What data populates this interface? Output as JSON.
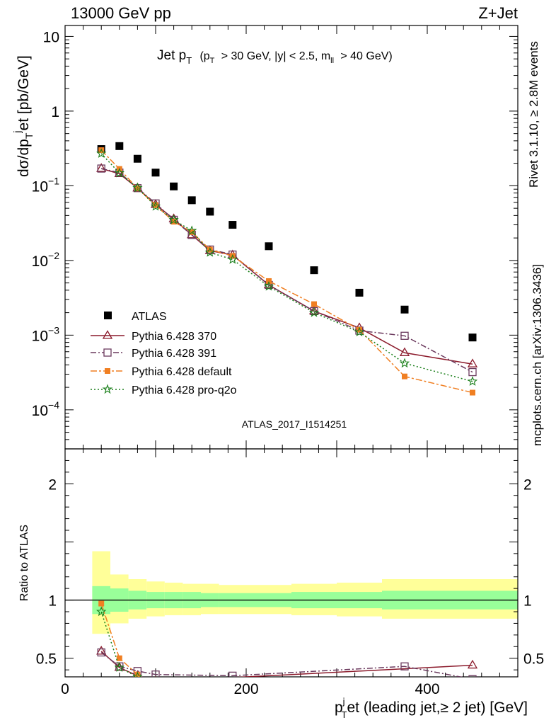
{
  "header": {
    "left": "13000 GeV pp",
    "right": "Z+Jet"
  },
  "side": {
    "rivet": "Rivet 3.1.10, ≥ 2.8M events",
    "mcplots": "mcplots.cern.ch [arXiv:1306.3436]"
  },
  "watermark": "ATLAS_2017_I1514251",
  "colors": {
    "atlas": "#000000",
    "p370": "#8b1a2b",
    "p391": "#6b3a5e",
    "pdefault": "#f07f22",
    "pq2o": "#1a7f1a",
    "band_inner": "#99ff99",
    "band_outer": "#ffff99"
  },
  "chart_data": [
    {
      "type": "scatter",
      "title_main": "Jet p",
      "title_sub": "T",
      "title_rest": "(p",
      "title_rest_sub": "T",
      "title_rest2": "> 30 GeV, |y| < 2.5, m",
      "title_rest2_sub": "ll",
      "title_rest3": "> 40 GeV)",
      "ylabel": "dσ/dp",
      "ylabel_sub": "T",
      "ylabel_sup": "j",
      "ylabel_rest": "et [pb/GeV]",
      "yscale": "log",
      "ylim": [
        3e-05,
        14
      ],
      "xlim": [
        0,
        500
      ],
      "yticks": [
        {
          "v": 10,
          "label": "10"
        },
        {
          "v": 1,
          "label": "1"
        },
        {
          "v": 0.1,
          "base": "10",
          "exp": "−1"
        },
        {
          "v": 0.01,
          "base": "10",
          "exp": "−2"
        },
        {
          "v": 0.001,
          "base": "10",
          "exp": "−3"
        },
        {
          "v": 0.0001,
          "base": "10",
          "exp": "−4"
        }
      ],
      "legend_position": "bottom-left",
      "series": [
        {
          "name": "ATLAS",
          "key": "atlas",
          "marker": "square",
          "x": [
            40,
            60,
            80,
            100,
            120,
            140,
            160,
            185,
            225,
            275,
            325,
            375,
            450
          ],
          "y": [
            0.31,
            0.34,
            0.23,
            0.15,
            0.098,
            0.064,
            0.045,
            0.03,
            0.0155,
            0.0074,
            0.0037,
            0.0022,
            0.00093
          ]
        },
        {
          "name": "Pythia 6.428 370",
          "key": "p370",
          "marker": "triangle-open",
          "dash": "",
          "x": [
            40,
            60,
            80,
            100,
            120,
            140,
            160,
            185,
            225,
            275,
            325,
            375,
            450
          ],
          "y": [
            0.17,
            0.145,
            0.093,
            0.056,
            0.036,
            0.022,
            0.0135,
            0.0118,
            0.0047,
            0.0021,
            0.00125,
            0.00058,
            0.00041
          ]
        },
        {
          "name": "Pythia 6.428 391",
          "key": "p391",
          "marker": "square-open",
          "dash": "8,3,2,3",
          "x": [
            40,
            60,
            80,
            100,
            120,
            140,
            160,
            185,
            225,
            275,
            325,
            375,
            450
          ],
          "y": [
            0.17,
            0.15,
            0.093,
            0.058,
            0.035,
            0.022,
            0.014,
            0.012,
            0.0047,
            0.0021,
            0.00115,
            0.00098,
            0.00032
          ]
        },
        {
          "name": "Pythia 6.428 default",
          "key": "pdefault",
          "marker": "square-filled",
          "dash": "9,3,3,3",
          "x": [
            40,
            60,
            80,
            100,
            120,
            140,
            160,
            185,
            225,
            275,
            325,
            375,
            450
          ],
          "y": [
            0.3,
            0.168,
            0.092,
            0.055,
            0.033,
            0.024,
            0.014,
            0.0115,
            0.0053,
            0.0026,
            0.00118,
            0.00028,
            0.00017
          ]
        },
        {
          "name": "Pythia 6.428 pro-q2o",
          "key": "pq2o",
          "marker": "star",
          "dash": "2,3",
          "x": [
            40,
            60,
            80,
            100,
            120,
            140,
            160,
            185,
            225,
            275,
            325,
            375,
            450
          ],
          "y": [
            0.27,
            0.148,
            0.094,
            0.053,
            0.035,
            0.025,
            0.0128,
            0.0103,
            0.0045,
            0.002,
            0.0011,
            0.00042,
            0.00024
          ]
        }
      ]
    },
    {
      "type": "scatter",
      "ylabel": "Ratio to ATLAS",
      "xlabel": "p",
      "xlabel_sup": "j",
      "xlabel_sub": "T",
      "xlabel_rest": "et (leading jet,≥ 2 jet) [GeV]",
      "xlim": [
        0,
        500
      ],
      "ylim": [
        0.34,
        2.3
      ],
      "xticks": [
        0,
        200,
        400
      ],
      "yticks": [
        0.5,
        1,
        2
      ],
      "ref_line": 1,
      "bands": {
        "edges": [
          30,
          50,
          70,
          90,
          110,
          130,
          150,
          170,
          200,
          250,
          300,
          350,
          400,
          500
        ],
        "inner_lo": [
          0.88,
          0.9,
          0.92,
          0.93,
          0.93,
          0.93,
          0.94,
          0.94,
          0.94,
          0.93,
          0.93,
          0.92,
          0.92
        ],
        "inner_hi": [
          1.12,
          1.1,
          1.08,
          1.07,
          1.07,
          1.07,
          1.06,
          1.06,
          1.06,
          1.07,
          1.07,
          1.08,
          1.08
        ],
        "outer_lo": [
          0.71,
          0.8,
          0.84,
          0.86,
          0.87,
          0.87,
          0.88,
          0.88,
          0.88,
          0.87,
          0.86,
          0.84,
          0.84
        ],
        "outer_hi": [
          1.42,
          1.22,
          1.18,
          1.16,
          1.15,
          1.14,
          1.14,
          1.13,
          1.13,
          1.14,
          1.15,
          1.18,
          1.18
        ]
      },
      "series": [
        {
          "key": "p370",
          "x": [
            40,
            60,
            80,
            100,
            450
          ],
          "y": [
            0.56,
            0.42,
            0.35,
            0.3,
            0.44
          ]
        },
        {
          "key": "p391",
          "x": [
            40,
            60,
            80,
            100,
            185,
            375,
            450
          ],
          "y": [
            0.55,
            0.43,
            0.39,
            0.36,
            0.35,
            0.43,
            0.32
          ]
        },
        {
          "key": "pdefault",
          "x": [
            40,
            60,
            80
          ],
          "y": [
            0.97,
            0.5,
            0.36
          ]
        },
        {
          "key": "pq2o",
          "x": [
            40,
            60,
            80
          ],
          "y": [
            0.9,
            0.42,
            0.34
          ]
        }
      ]
    }
  ]
}
